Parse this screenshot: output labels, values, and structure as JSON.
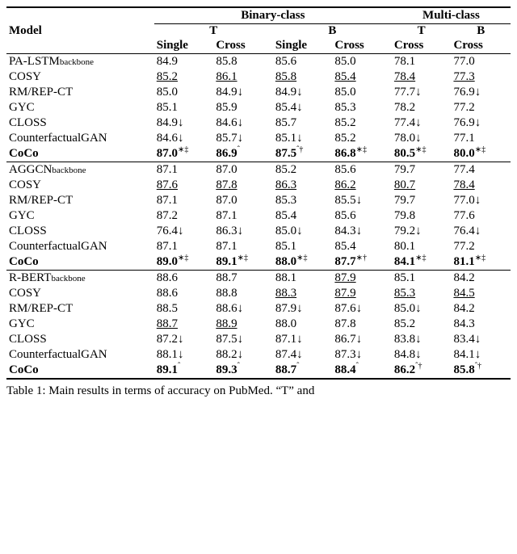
{
  "headers": {
    "model": "Model",
    "binary": "Binary-class",
    "multi": "Multi-class",
    "T": "T",
    "B": "B",
    "single": "Single",
    "cross": "Cross"
  },
  "groups": [
    {
      "rows": [
        {
          "model_pre": "PA-LSTM",
          "model_sub": "backbone",
          "model_post": "",
          "bold": false,
          "cells": [
            {
              "v": "84.9"
            },
            {
              "v": "85.8"
            },
            {
              "v": "85.6"
            },
            {
              "v": "85.0"
            },
            {
              "v": "78.1"
            },
            {
              "v": "77.0"
            }
          ]
        },
        {
          "model_pre": "COSY",
          "model_sub": "",
          "model_post": "",
          "bold": false,
          "cells": [
            {
              "v": "85.2",
              "ul": true
            },
            {
              "v": "86.1",
              "ul": true
            },
            {
              "v": "85.8",
              "ul": true
            },
            {
              "v": "85.4",
              "ul": true
            },
            {
              "v": "78.4",
              "ul": true
            },
            {
              "v": "77.3",
              "ul": true
            }
          ]
        },
        {
          "model_pre": "RM/REP-CT",
          "model_sub": "",
          "model_post": "",
          "bold": false,
          "cells": [
            {
              "v": "85.0"
            },
            {
              "v": "84.9",
              "suf": "↓"
            },
            {
              "v": "84.9",
              "suf": "↓"
            },
            {
              "v": "85.0"
            },
            {
              "v": "77.7",
              "suf": "↓"
            },
            {
              "v": "76.9",
              "suf": "↓"
            }
          ]
        },
        {
          "model_pre": "GYC",
          "model_sub": "",
          "model_post": "",
          "bold": false,
          "cells": [
            {
              "v": "85.1"
            },
            {
              "v": "85.9"
            },
            {
              "v": "85.4",
              "suf": "↓"
            },
            {
              "v": "85.3"
            },
            {
              "v": "78.2"
            },
            {
              "v": "77.2"
            }
          ]
        },
        {
          "model_pre": "CLOSS",
          "model_sub": "",
          "model_post": "",
          "bold": false,
          "cells": [
            {
              "v": "84.9",
              "suf": "↓"
            },
            {
              "v": "84.6",
              "suf": "↓"
            },
            {
              "v": "85.7"
            },
            {
              "v": "85.2"
            },
            {
              "v": "77.4",
              "suf": "↓"
            },
            {
              "v": "76.9",
              "suf": "↓"
            }
          ]
        },
        {
          "model_pre": "CounterfactualGAN",
          "model_sub": "",
          "model_post": "",
          "bold": false,
          "cells": [
            {
              "v": "84.6",
              "suf": "↓"
            },
            {
              "v": "85.7",
              "suf": "↓"
            },
            {
              "v": "85.1",
              "suf": "↓"
            },
            {
              "v": "85.2"
            },
            {
              "v": "78.0",
              "suf": "↓"
            },
            {
              "v": "77.1"
            }
          ]
        },
        {
          "model_pre": "CoCo",
          "model_sub": "",
          "model_post": "",
          "bold": true,
          "cells": [
            {
              "v": "87.0",
              "sup": "∗‡",
              "bold": true
            },
            {
              "v": "86.9",
              "sup": "ˆ",
              "bold": true
            },
            {
              "v": "87.5",
              "sup": "ˆ†",
              "bold": true
            },
            {
              "v": "86.8",
              "sup": "∗‡",
              "bold": true
            },
            {
              "v": "80.5",
              "sup": "∗‡",
              "bold": true
            },
            {
              "v": "80.0",
              "sup": "∗‡",
              "bold": true
            }
          ]
        }
      ]
    },
    {
      "rows": [
        {
          "model_pre": "AGGCN",
          "model_sub": "backbone",
          "model_post": "",
          "bold": false,
          "cells": [
            {
              "v": "87.1"
            },
            {
              "v": "87.0"
            },
            {
              "v": "85.2"
            },
            {
              "v": "85.6"
            },
            {
              "v": "79.7"
            },
            {
              "v": "77.4"
            }
          ]
        },
        {
          "model_pre": "COSY",
          "model_sub": "",
          "model_post": "",
          "bold": false,
          "cells": [
            {
              "v": "87.6",
              "ul": true
            },
            {
              "v": "87.8",
              "ul": true
            },
            {
              "v": "86.3",
              "ul": true
            },
            {
              "v": "86.2",
              "ul": true
            },
            {
              "v": "80.7",
              "ul": true
            },
            {
              "v": "78.4",
              "ul": true
            }
          ]
        },
        {
          "model_pre": "RM/REP-CT",
          "model_sub": "",
          "model_post": "",
          "bold": false,
          "cells": [
            {
              "v": "87.1"
            },
            {
              "v": "87.0"
            },
            {
              "v": "85.3"
            },
            {
              "v": "85.5",
              "suf": "↓"
            },
            {
              "v": "79.7"
            },
            {
              "v": "77.0",
              "suf": "↓"
            }
          ]
        },
        {
          "model_pre": "GYC",
          "model_sub": "",
          "model_post": "",
          "bold": false,
          "cells": [
            {
              "v": "87.2"
            },
            {
              "v": "87.1"
            },
            {
              "v": "85.4"
            },
            {
              "v": "85.6"
            },
            {
              "v": "79.8"
            },
            {
              "v": "77.6"
            }
          ]
        },
        {
          "model_pre": "CLOSS",
          "model_sub": "",
          "model_post": "",
          "bold": false,
          "cells": [
            {
              "v": "76.4",
              "suf": "↓"
            },
            {
              "v": "86.3",
              "suf": "↓"
            },
            {
              "v": "85.0",
              "suf": "↓"
            },
            {
              "v": "84.3",
              "suf": "↓"
            },
            {
              "v": "79.2",
              "suf": "↓"
            },
            {
              "v": "76.4",
              "suf": "↓"
            }
          ]
        },
        {
          "model_pre": "CounterfactualGAN",
          "model_sub": "",
          "model_post": "",
          "bold": false,
          "cells": [
            {
              "v": "87.1"
            },
            {
              "v": "87.1"
            },
            {
              "v": "85.1"
            },
            {
              "v": "85.4"
            },
            {
              "v": "80.1"
            },
            {
              "v": "77.2"
            }
          ]
        },
        {
          "model_pre": "CoCo",
          "model_sub": "",
          "model_post": "",
          "bold": true,
          "cells": [
            {
              "v": "89.0",
              "sup": "∗‡",
              "bold": true
            },
            {
              "v": "89.1",
              "sup": "∗‡",
              "bold": true
            },
            {
              "v": "88.0",
              "sup": "∗‡",
              "bold": true
            },
            {
              "v": "87.7",
              "sup": "∗†",
              "bold": true
            },
            {
              "v": "84.1",
              "sup": "∗‡",
              "bold": true
            },
            {
              "v": "81.1",
              "sup": "∗‡",
              "bold": true
            }
          ]
        }
      ]
    },
    {
      "rows": [
        {
          "model_pre": "R-BERT",
          "model_sub": "backbone",
          "model_post": "",
          "bold": false,
          "cells": [
            {
              "v": "88.6"
            },
            {
              "v": "88.7"
            },
            {
              "v": "88.1"
            },
            {
              "v": "87.9",
              "ul": true
            },
            {
              "v": "85.1"
            },
            {
              "v": "84.2"
            }
          ]
        },
        {
          "model_pre": "COSY",
          "model_sub": "",
          "model_post": "",
          "bold": false,
          "cells": [
            {
              "v": "88.6"
            },
            {
              "v": "88.8"
            },
            {
              "v": "88.3",
              "ul": true
            },
            {
              "v": "87.9",
              "ul": true
            },
            {
              "v": "85.3",
              "ul": true
            },
            {
              "v": "84.5",
              "ul": true
            }
          ]
        },
        {
          "model_pre": "RM/REP-CT",
          "model_sub": "",
          "model_post": "",
          "bold": false,
          "cells": [
            {
              "v": "88.5"
            },
            {
              "v": "88.6",
              "suf": "↓"
            },
            {
              "v": "87.9",
              "suf": "↓"
            },
            {
              "v": "87.6",
              "suf": "↓"
            },
            {
              "v": "85.0",
              "suf": "↓"
            },
            {
              "v": "84.2"
            }
          ]
        },
        {
          "model_pre": "GYC",
          "model_sub": "",
          "model_post": "",
          "bold": false,
          "cells": [
            {
              "v": "88.7",
              "ul": true
            },
            {
              "v": "88.9",
              "ul": true
            },
            {
              "v": "88.0"
            },
            {
              "v": "87.8"
            },
            {
              "v": "85.2"
            },
            {
              "v": "84.3"
            }
          ]
        },
        {
          "model_pre": "CLOSS",
          "model_sub": "",
          "model_post": "",
          "bold": false,
          "cells": [
            {
              "v": "87.2",
              "suf": "↓"
            },
            {
              "v": "87.5",
              "suf": "↓"
            },
            {
              "v": "87.1",
              "suf": "↓"
            },
            {
              "v": "86.7",
              "suf": "↓"
            },
            {
              "v": "83.8",
              "suf": "↓"
            },
            {
              "v": "83.4",
              "suf": "↓"
            }
          ]
        },
        {
          "model_pre": "CounterfactualGAN",
          "model_sub": "",
          "model_post": "",
          "bold": false,
          "cells": [
            {
              "v": "88.1",
              "suf": "↓"
            },
            {
              "v": "88.2",
              "suf": "↓"
            },
            {
              "v": "87.4",
              "suf": "↓"
            },
            {
              "v": "87.3",
              "suf": "↓"
            },
            {
              "v": "84.8",
              "suf": "↓"
            },
            {
              "v": "84.1",
              "suf": "↓"
            }
          ]
        },
        {
          "model_pre": "CoCo",
          "model_sub": "",
          "model_post": "",
          "bold": true,
          "cells": [
            {
              "v": "89.1",
              "sup": "ˆ",
              "bold": true
            },
            {
              "v": "89.3",
              "sup": "ˆ",
              "bold": true
            },
            {
              "v": "88.7",
              "sup": "ˆ",
              "bold": true
            },
            {
              "v": "88.4",
              "sup": "ˆ",
              "bold": true
            },
            {
              "v": "86.2",
              "sup": "ˆ†",
              "bold": true
            },
            {
              "v": "85.8",
              "sup": "ˆ†",
              "bold": true
            }
          ]
        }
      ]
    }
  ],
  "caption": "Table 1:  Main results in terms of accuracy on PubMed.  “T” and"
}
